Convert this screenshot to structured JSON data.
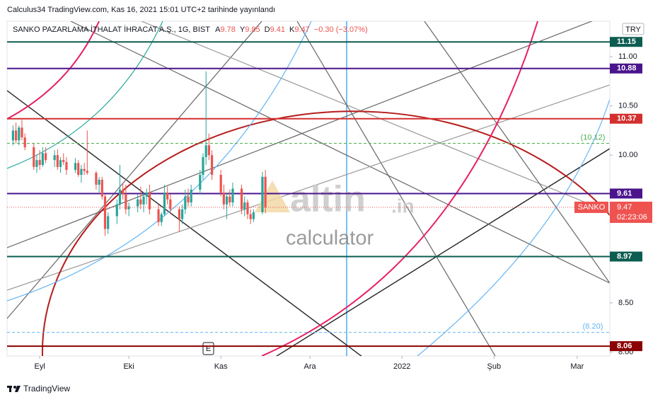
{
  "header": {
    "published": "Calculus34 TradingView.com, Kas 16, 2021 15:01 UTC+2 tarihinde yayınlandı",
    "symbol": "SANKO PAZARLAMA İTHALAT İHRACAT A.Ş., 1G, BIST",
    "ohlc_letters": [
      "A",
      "Y",
      "D",
      "K"
    ],
    "change": "−0.30 (−3.07%)",
    "currency": "TRY"
  },
  "chart_data": {
    "type": "candlestick",
    "x": [
      -9,
      -8,
      -7,
      -6,
      -5,
      -2,
      -1,
      0,
      1,
      2,
      5,
      6,
      7,
      8,
      9,
      12,
      13,
      14,
      15,
      16,
      19,
      20,
      21,
      22,
      23,
      26,
      27,
      28,
      29,
      30,
      33,
      34,
      35,
      36,
      37,
      40,
      41,
      42,
      43,
      44,
      47,
      48,
      49,
      50,
      51,
      54,
      55,
      56,
      57,
      58,
      61,
      62,
      63,
      64,
      65,
      68,
      69,
      70,
      71,
      72,
      75,
      76
    ],
    "open": [
      10.15,
      10.25,
      10.15,
      10.28,
      10.18,
      10.08,
      9.88,
      9.95,
      9.9,
      10.02,
      9.95,
      10.0,
      9.88,
      9.95,
      9.93,
      9.85,
      9.92,
      9.8,
      9.86,
      9.84,
      9.82,
      9.7,
      9.75,
      9.58,
      9.25,
      9.38,
      9.5,
      9.65,
      9.6,
      9.45,
      9.48,
      9.55,
      9.5,
      9.58,
      9.62,
      9.45,
      9.32,
      9.4,
      9.62,
      9.55,
      9.45,
      9.35,
      9.45,
      9.58,
      9.52,
      9.65,
      9.8,
      9.98,
      10.1,
      10.0,
      9.8,
      9.62,
      9.5,
      9.58,
      9.52,
      9.66,
      9.45,
      9.52,
      9.4,
      9.35,
      9.42,
      9.78
    ],
    "high": [
      10.3,
      10.33,
      10.3,
      10.36,
      10.22,
      10.12,
      10.0,
      10.05,
      10.08,
      10.08,
      10.05,
      10.06,
      9.98,
      10.02,
      9.98,
      9.97,
      9.95,
      9.9,
      9.92,
      10.25,
      9.84,
      9.78,
      9.78,
      9.6,
      9.42,
      9.55,
      9.9,
      9.72,
      9.7,
      9.52,
      9.6,
      9.68,
      9.62,
      9.66,
      9.7,
      9.5,
      9.42,
      9.7,
      9.68,
      9.6,
      9.48,
      9.5,
      9.65,
      9.66,
      9.7,
      9.85,
      10.02,
      10.85,
      10.22,
      10.05,
      9.85,
      9.7,
      9.62,
      9.65,
      9.72,
      9.7,
      9.58,
      9.55,
      9.45,
      9.45,
      9.83,
      9.85
    ],
    "low": [
      10.1,
      10.12,
      10.1,
      10.15,
      10.05,
      9.85,
      9.82,
      9.85,
      9.88,
      9.92,
      9.88,
      9.85,
      9.82,
      9.9,
      9.8,
      9.82,
      9.78,
      9.72,
      9.8,
      9.8,
      9.65,
      9.62,
      9.55,
      9.18,
      9.2,
      9.3,
      9.45,
      9.55,
      9.4,
      9.38,
      9.42,
      9.45,
      9.42,
      9.5,
      9.4,
      9.28,
      9.28,
      9.38,
      9.5,
      9.4,
      9.22,
      9.3,
      9.4,
      9.48,
      9.48,
      9.6,
      9.75,
      9.9,
      9.95,
      9.75,
      9.58,
      9.45,
      9.35,
      9.48,
      9.48,
      9.4,
      9.38,
      9.35,
      9.3,
      9.32,
      9.4,
      9.41
    ],
    "close": [
      10.25,
      10.15,
      10.28,
      10.18,
      10.08,
      9.88,
      9.95,
      9.9,
      10.02,
      9.95,
      10.0,
      9.88,
      9.95,
      9.93,
      9.85,
      9.92,
      9.8,
      9.86,
      9.84,
      9.82,
      9.7,
      9.75,
      9.58,
      9.25,
      9.38,
      9.5,
      9.65,
      9.6,
      9.45,
      9.48,
      9.55,
      9.5,
      9.58,
      9.62,
      9.45,
      9.32,
      9.4,
      9.62,
      9.55,
      9.45,
      9.35,
      9.45,
      9.58,
      9.52,
      9.65,
      9.8,
      9.98,
      10.1,
      10.0,
      9.8,
      9.62,
      9.5,
      9.58,
      9.52,
      9.66,
      9.45,
      9.52,
      9.4,
      9.35,
      9.42,
      9.78,
      9.47
    ],
    "up_color": "#26a69a",
    "down_color": "#ef5350",
    "xlim": [
      -11,
      192
    ],
    "xticks": [
      {
        "value": 0,
        "label": "Eyl"
      },
      {
        "value": 30,
        "label": "Eki"
      },
      {
        "value": 61,
        "label": "Kas"
      },
      {
        "value": 91,
        "label": "Ara"
      },
      {
        "value": 122,
        "label": "2022"
      },
      {
        "value": 153,
        "label": "Şub"
      },
      {
        "value": 181,
        "label": "Mar"
      }
    ],
    "ylim": [
      7.96,
      11.36
    ],
    "yticks": [
      {
        "value": 11,
        "label": "11.00"
      },
      {
        "value": 10.5,
        "label": "10.50"
      },
      {
        "value": 10,
        "label": "10.00"
      },
      {
        "value": 8.5,
        "label": "8.50"
      },
      {
        "value": 8,
        "label": "8.00"
      }
    ],
    "levels": [
      {
        "value": 11.15,
        "color": "#0d5c51",
        "style": "solid"
      },
      {
        "value": 10.88,
        "color": "#4a148c",
        "style": "solid"
      },
      {
        "value": 10.37,
        "color": "#d32f2f",
        "style": "solid"
      },
      {
        "value": 10.12,
        "label": "(10.12)",
        "color": "#4caf50",
        "style": "dashed"
      },
      {
        "value": 9.61,
        "color": "#4a148c",
        "style": "solid"
      },
      {
        "value": 8.97,
        "color": "#0d5c51",
        "style": "solid"
      },
      {
        "value": 8.2,
        "label": "(8.20)",
        "color": "#64b5f6",
        "style": "dashed"
      },
      {
        "value": 8.06,
        "color": "#8b0000",
        "style": "solid"
      }
    ],
    "symbol_tag": "SANKO",
    "countdown": "02:23:06",
    "event_marker": "E"
  },
  "watermark": {
    "brand": "altin",
    "tld": ".in",
    "sub": "calculator"
  },
  "footer": "TradingView"
}
